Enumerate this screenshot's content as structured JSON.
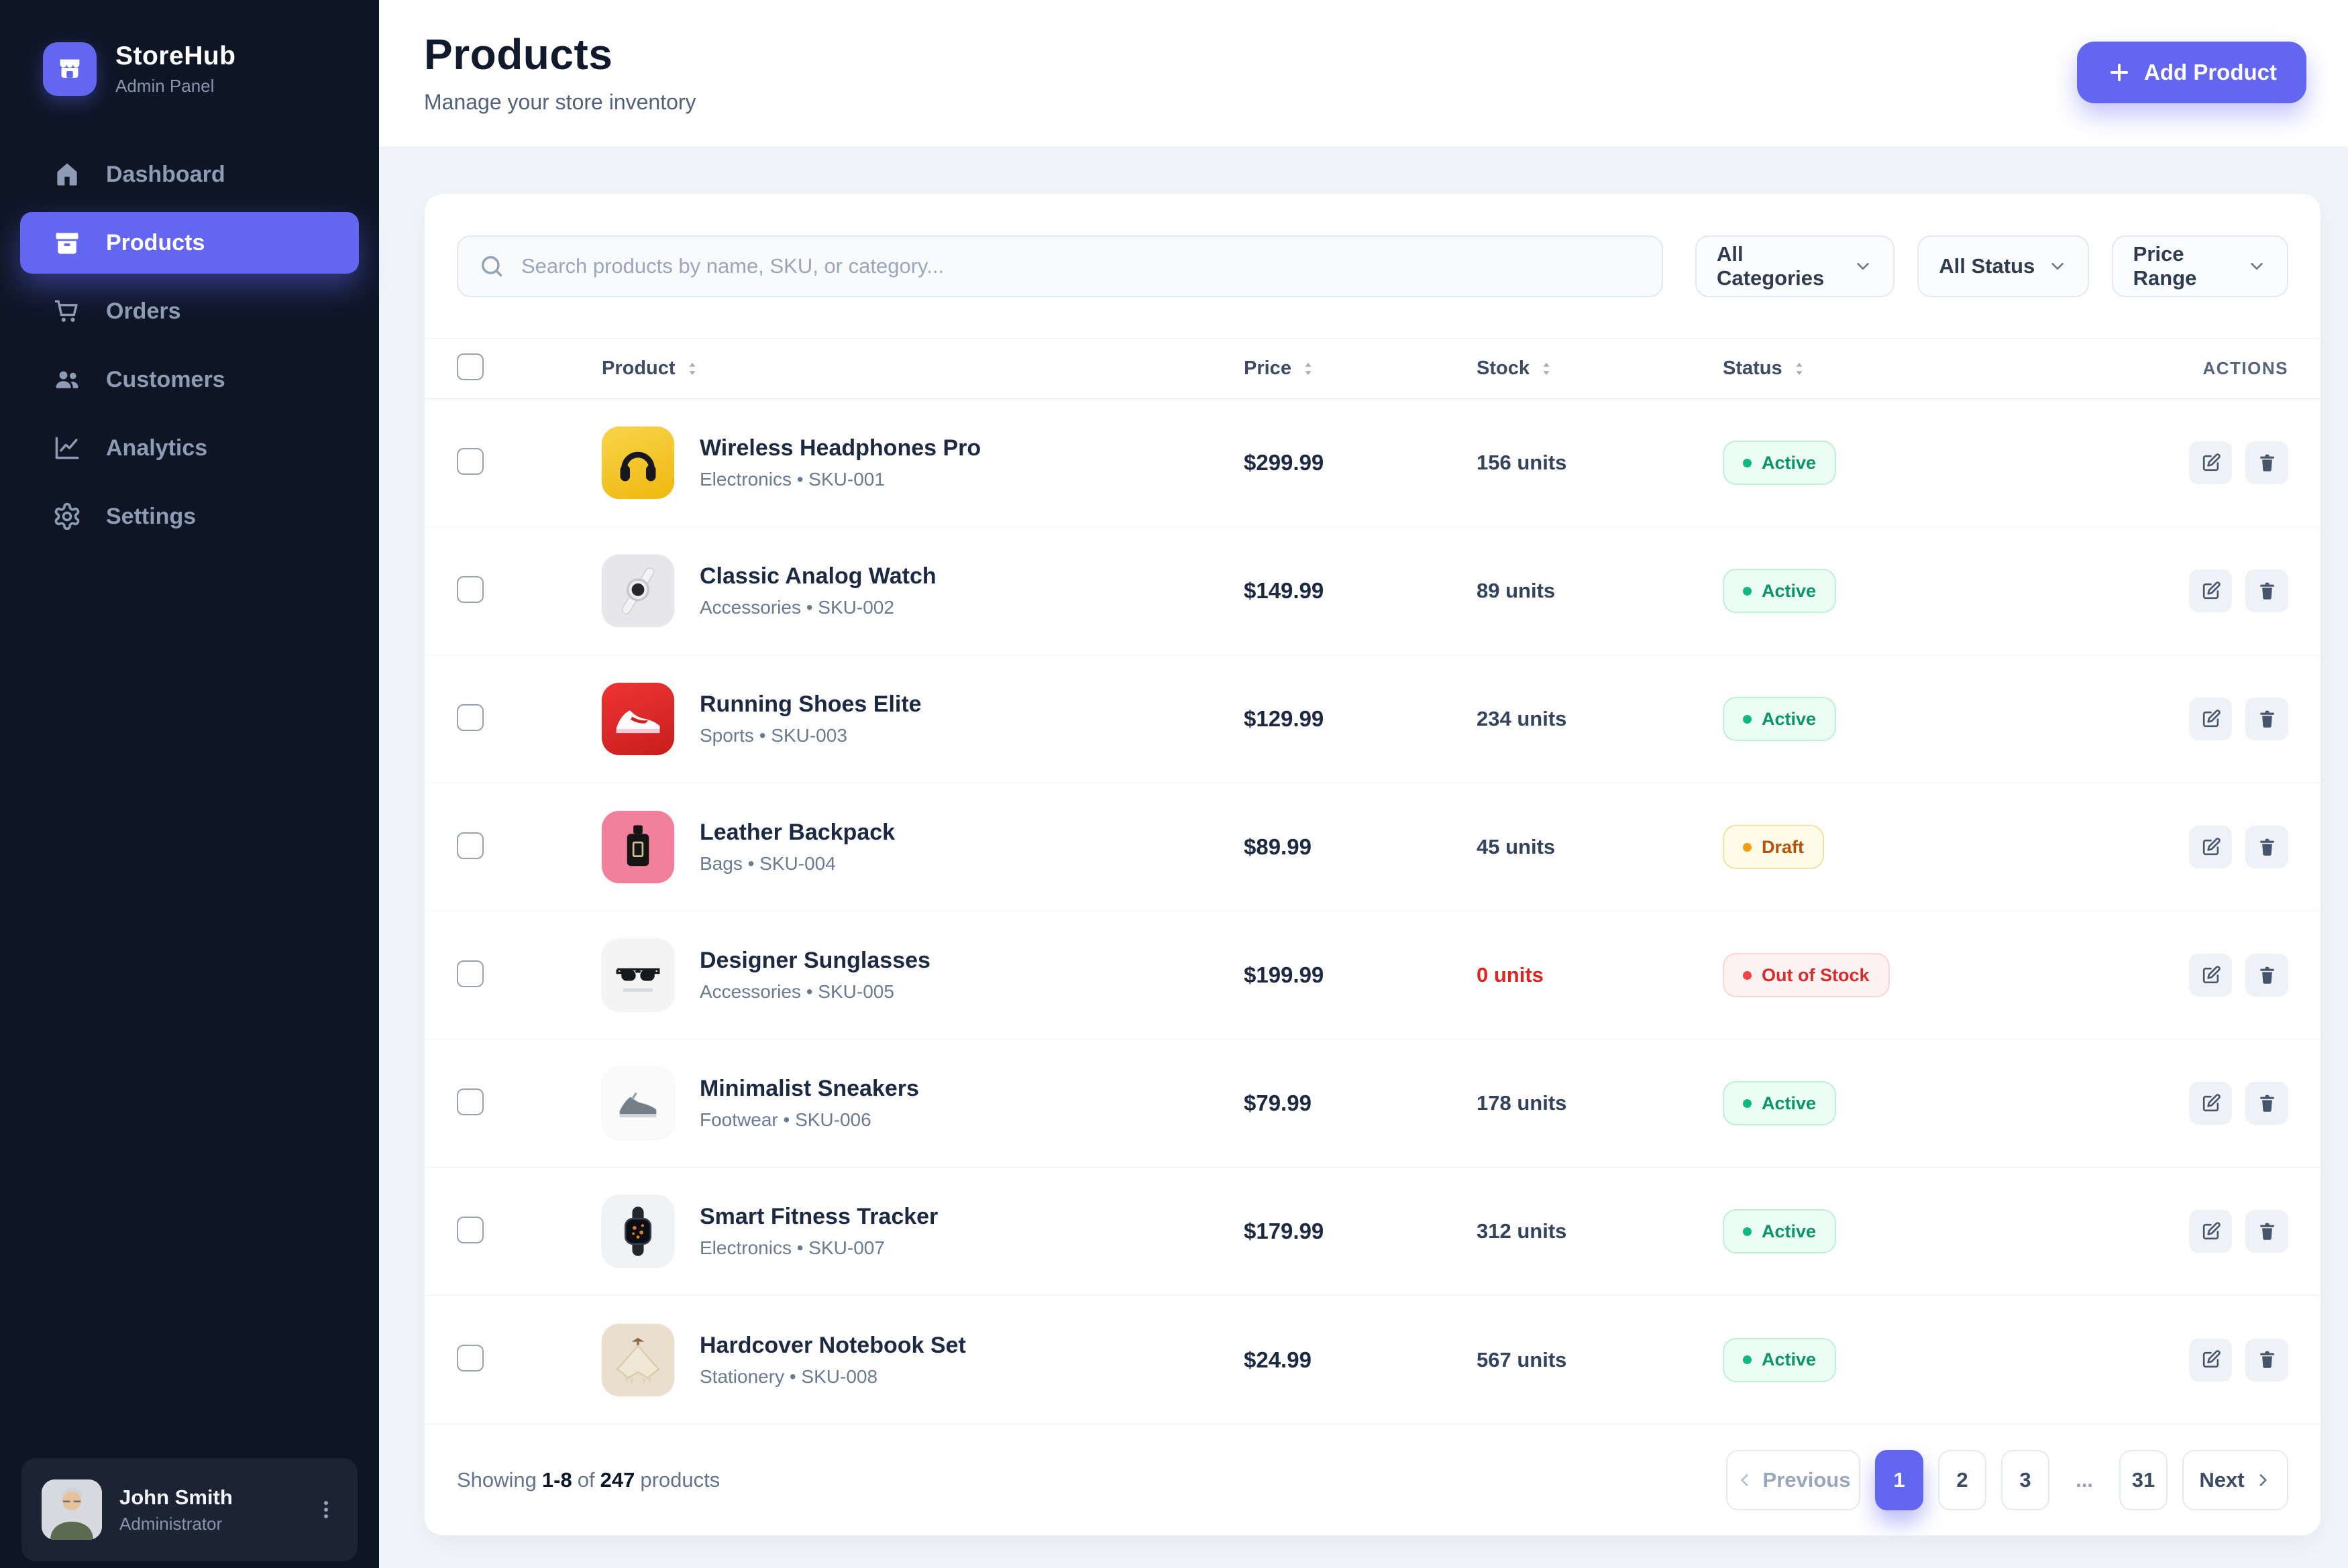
{
  "app": {
    "name": "StoreHub",
    "subtitle": "Admin Panel"
  },
  "sidebar": {
    "items": [
      {
        "label": "Dashboard",
        "icon": "home-icon",
        "active": false
      },
      {
        "label": "Products",
        "icon": "products-icon",
        "active": true
      },
      {
        "label": "Orders",
        "icon": "cart-icon",
        "active": false
      },
      {
        "label": "Customers",
        "icon": "users-icon",
        "active": false
      },
      {
        "label": "Analytics",
        "icon": "chart-icon",
        "active": false
      },
      {
        "label": "Settings",
        "icon": "gear-icon",
        "active": false
      }
    ],
    "user": {
      "name": "John Smith",
      "role": "Administrator"
    }
  },
  "header": {
    "title": "Products",
    "subtitle": "Manage your store inventory",
    "add_button_label": "Add Product"
  },
  "filters": {
    "search_placeholder": "Search products by name, SKU, or category...",
    "dropdowns": [
      {
        "label": "All Categories"
      },
      {
        "label": "All Status"
      },
      {
        "label": "Price Range"
      }
    ]
  },
  "table": {
    "columns": [
      {
        "label": "Product",
        "sortable": true
      },
      {
        "label": "Price",
        "sortable": true
      },
      {
        "label": "Stock",
        "sortable": true
      },
      {
        "label": "Status",
        "sortable": true
      },
      {
        "label": "ACTIONS",
        "sortable": false
      }
    ],
    "meta_separator": " • ",
    "rows": [
      {
        "name": "Wireless Headphones Pro",
        "category": "Electronics",
        "sku": "SKU-001",
        "price": "$299.99",
        "stock": "156 units",
        "stock_zero": false,
        "status": "Active",
        "status_type": "active",
        "thumb": "headphones"
      },
      {
        "name": "Classic Analog Watch",
        "category": "Accessories",
        "sku": "SKU-002",
        "price": "$149.99",
        "stock": "89 units",
        "stock_zero": false,
        "status": "Active",
        "status_type": "active",
        "thumb": "watch"
      },
      {
        "name": "Running Shoes Elite",
        "category": "Sports",
        "sku": "SKU-003",
        "price": "$129.99",
        "stock": "234 units",
        "stock_zero": false,
        "status": "Active",
        "status_type": "active",
        "thumb": "shoe-red"
      },
      {
        "name": "Leather Backpack",
        "category": "Bags",
        "sku": "SKU-004",
        "price": "$89.99",
        "stock": "45 units",
        "stock_zero": false,
        "status": "Draft",
        "status_type": "draft",
        "thumb": "perfume"
      },
      {
        "name": "Designer Sunglasses",
        "category": "Accessories",
        "sku": "SKU-005",
        "price": "$199.99",
        "stock": "0 units",
        "stock_zero": true,
        "status": "Out of Stock",
        "status_type": "out",
        "thumb": "sunglasses"
      },
      {
        "name": "Minimalist Sneakers",
        "category": "Footwear",
        "sku": "SKU-006",
        "price": "$79.99",
        "stock": "178 units",
        "stock_zero": false,
        "status": "Active",
        "status_type": "active",
        "thumb": "sneaker-gray"
      },
      {
        "name": "Smart Fitness Tracker",
        "category": "Electronics",
        "sku": "SKU-007",
        "price": "$179.99",
        "stock": "312 units",
        "stock_zero": false,
        "status": "Active",
        "status_type": "active",
        "thumb": "smartwatch"
      },
      {
        "name": "Hardcover Notebook Set",
        "category": "Stationery",
        "sku": "SKU-008",
        "price": "$24.99",
        "stock": "567 units",
        "stock_zero": false,
        "status": "Active",
        "status_type": "active",
        "thumb": "sweater"
      }
    ]
  },
  "pagination": {
    "showing_prefix": "Showing",
    "range": "1-8",
    "of_word": "of",
    "total": "247",
    "suffix": "products",
    "previous_label": "Previous",
    "next_label": "Next",
    "pages": [
      {
        "label": "1",
        "active": true,
        "ellipsis": false
      },
      {
        "label": "2",
        "active": false,
        "ellipsis": false
      },
      {
        "label": "3",
        "active": false,
        "ellipsis": false
      },
      {
        "label": "...",
        "active": false,
        "ellipsis": true
      },
      {
        "label": "31",
        "active": false,
        "ellipsis": false
      }
    ]
  },
  "colors": {
    "accent": "#6366f1",
    "sidebar_bg": "#0e1626",
    "status_active": "#0a9467",
    "status_draft": "#b45309",
    "status_out": "#d92b2b"
  }
}
